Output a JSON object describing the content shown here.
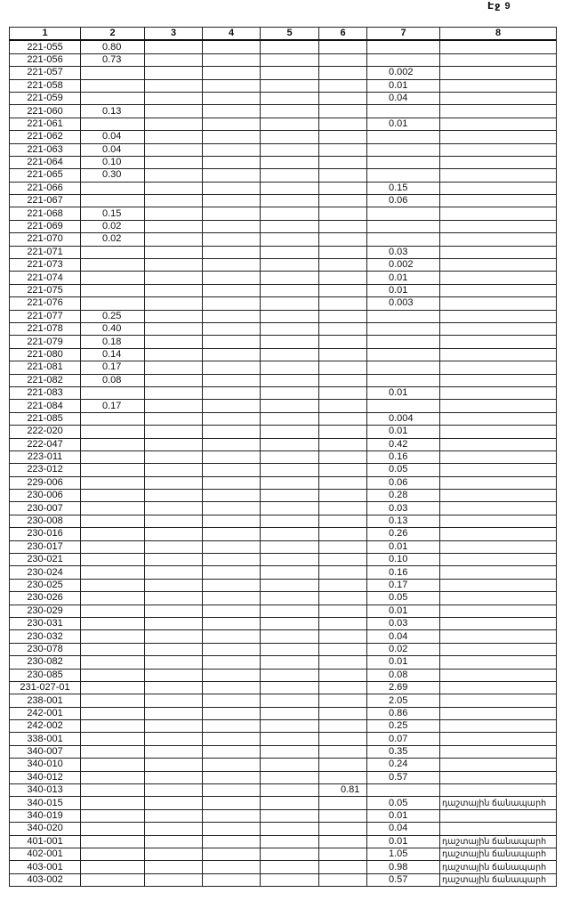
{
  "header": {
    "page": "Էջ 9"
  },
  "table": {
    "columns": [
      "1",
      "2",
      "3",
      "4",
      "5",
      "6",
      "7",
      "8"
    ],
    "rows": [
      {
        "c1": "221-055",
        "c2": "0.80"
      },
      {
        "c1": "221-056",
        "c2": "0.73"
      },
      {
        "c1": "221-057",
        "c7": "0.002"
      },
      {
        "c1": "221-058",
        "c7": "0.01"
      },
      {
        "c1": "221-059",
        "c7": "0.04"
      },
      {
        "c1": "221-060",
        "c2": "0.13"
      },
      {
        "c1": "221-061",
        "c7": "0.01"
      },
      {
        "c1": "221-062",
        "c2": "0.04"
      },
      {
        "c1": "221-063",
        "c2": "0.04"
      },
      {
        "c1": "221-064",
        "c2": "0.10"
      },
      {
        "c1": "221-065",
        "c2": "0.30"
      },
      {
        "c1": "221-066",
        "c7": "0.15"
      },
      {
        "c1": "221-067",
        "c7": "0.06"
      },
      {
        "c1": "221-068",
        "c2": "0.15"
      },
      {
        "c1": "221-069",
        "c2": "0.02"
      },
      {
        "c1": "221-070",
        "c2": "0.02"
      },
      {
        "c1": "221-071",
        "c7": "0.03"
      },
      {
        "c1": "221-073",
        "c7": "0.002"
      },
      {
        "c1": "221-074",
        "c7": "0.01"
      },
      {
        "c1": "221-075",
        "c7": "0.01"
      },
      {
        "c1": "221-076",
        "c7": "0.003"
      },
      {
        "c1": "221-077",
        "c2": "0.25"
      },
      {
        "c1": "221-078",
        "c2": "0.40"
      },
      {
        "c1": "221-079",
        "c2": "0.18"
      },
      {
        "c1": "221-080",
        "c2": "0.14"
      },
      {
        "c1": "221-081",
        "c2": "0.17"
      },
      {
        "c1": "221-082",
        "c2": "0.08"
      },
      {
        "c1": "221-083",
        "c7": "0.01"
      },
      {
        "c1": "221-084",
        "c2": "0.17"
      },
      {
        "c1": "221-085",
        "c7": "0.004"
      },
      {
        "c1": "222-020",
        "c7": "0.01"
      },
      {
        "c1": "222-047",
        "c7": "0.42"
      },
      {
        "c1": "223-011",
        "c7": "0.16"
      },
      {
        "c1": "223-012",
        "c7": "0.05"
      },
      {
        "c1": "229-006",
        "c7": "0.06"
      },
      {
        "c1": "230-006",
        "c7": "0.28"
      },
      {
        "c1": "230-007",
        "c7": "0.03"
      },
      {
        "c1": "230-008",
        "c7": "0.13"
      },
      {
        "c1": "230-016",
        "c7": "0.26"
      },
      {
        "c1": "230-017",
        "c7": "0.01"
      },
      {
        "c1": "230-021",
        "c7": "0.10"
      },
      {
        "c1": "230-024",
        "c7": "0.16"
      },
      {
        "c1": "230-025",
        "c7": "0.17"
      },
      {
        "c1": "230-026",
        "c7": "0.05"
      },
      {
        "c1": "230-029",
        "c7": "0.01"
      },
      {
        "c1": "230-031",
        "c7": "0.03"
      },
      {
        "c1": "230-032",
        "c7": "0.04"
      },
      {
        "c1": "230-078",
        "c7": "0.02"
      },
      {
        "c1": "230-082",
        "c7": "0.01"
      },
      {
        "c1": "230-085",
        "c7": "0.08"
      },
      {
        "c1": "231-027-01",
        "c7": "2.69"
      },
      {
        "c1": "238-001",
        "c7": "2.05"
      },
      {
        "c1": "242-001",
        "c7": "0.86"
      },
      {
        "c1": "242-002",
        "c7": "0.25"
      },
      {
        "c1": "338-001",
        "c7": "0.07"
      },
      {
        "c1": "340-007",
        "c7": "0.35"
      },
      {
        "c1": "340-010",
        "c7": "0.24"
      },
      {
        "c1": "340-012",
        "c7": "0.57"
      },
      {
        "c1": "340-013",
        "c6": "0.81"
      },
      {
        "c1": "340-015",
        "c7": "0.05",
        "c8": "դաշտային ճանապարհ"
      },
      {
        "c1": "340-019",
        "c7": "0.01"
      },
      {
        "c1": "340-020",
        "c7": "0.04"
      },
      {
        "c1": "401-001",
        "c7": "0.01",
        "c8": "դաշտային ճանապարհ"
      },
      {
        "c1": "402-001",
        "c7": "1.05",
        "c8": "դաշտային ճանապարհ"
      },
      {
        "c1": "403-001",
        "c7": "0.98",
        "c8": "դաշտային ճանապարհ"
      },
      {
        "c1": "403-002",
        "c7": "0.57",
        "c8": "դաշտային ճանապարհ"
      }
    ]
  }
}
